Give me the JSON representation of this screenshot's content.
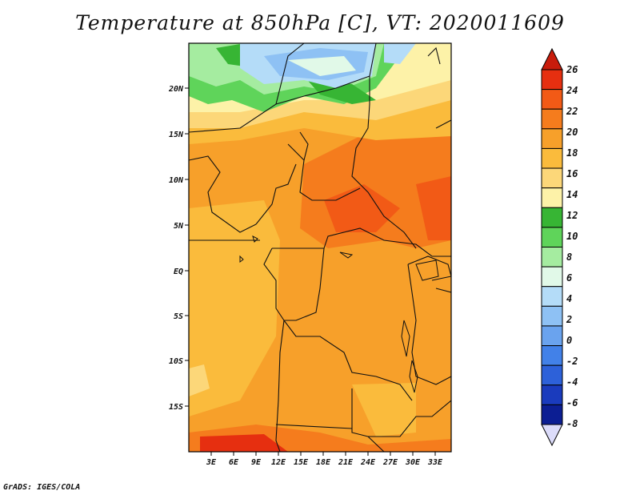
{
  "title": "Temperature at 850hPa [C], VT: 2020011609",
  "credit": "GrADS: IGES/COLA",
  "axes": {
    "lat_labels": [
      "20N",
      "15N",
      "10N",
      "5N",
      "EQ",
      "5S",
      "10S",
      "15S"
    ],
    "lon_labels": [
      "3E",
      "6E",
      "9E",
      "12E",
      "15E",
      "18E",
      "21E",
      "24E",
      "27E",
      "30E",
      "33E"
    ]
  },
  "colorbar": {
    "labels": [
      "26",
      "24",
      "22",
      "20",
      "18",
      "16",
      "14",
      "12",
      "10",
      "8",
      "6",
      "4",
      "2",
      "0",
      "-2",
      "-4",
      "-6",
      "-8"
    ],
    "colors": [
      "#e62f10",
      "#f25a16",
      "#f57c1d",
      "#f7a02a",
      "#fabb3c",
      "#fcd779",
      "#fdf2a8",
      "#37b534",
      "#5fd45a",
      "#a5eca0",
      "#e1f9e8",
      "#b4dcf8",
      "#8ec1f4",
      "#6aa3ee",
      "#4281e8",
      "#2d61d9",
      "#1a3bbd",
      "#0c1e93"
    ],
    "top_arrow_color": "#c81c0c",
    "bottom_arrow_color": "#dcdcfa"
  }
}
